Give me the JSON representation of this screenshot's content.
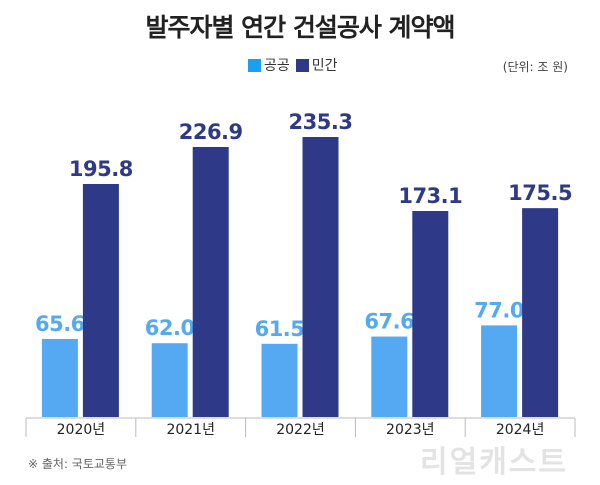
{
  "chart_data": {
    "type": "bar",
    "title": "발주자별 연간 건설공사 계약액",
    "unit": "(단위: 조 원)",
    "categories": [
      "2020년",
      "2021년",
      "2022년",
      "2023년",
      "2024년"
    ],
    "series": [
      {
        "name": "공공",
        "color": "#55a9f3",
        "values": [
          65.6,
          62.0,
          61.5,
          67.6,
          77.0
        ],
        "labels": [
          "65.6",
          "62.0",
          "61.5",
          "67.6",
          "77.0"
        ]
      },
      {
        "name": "민간",
        "color": "#2e3a87",
        "values": [
          195.8,
          226.9,
          235.3,
          173.1,
          175.5
        ],
        "labels": [
          "195.8",
          "226.9",
          "235.3",
          "173.1",
          "175.5"
        ]
      }
    ],
    "ylim": [
      0,
      240
    ],
    "legend": "top-center",
    "source": "※ 출처: 국토교통부",
    "watermark": "리얼캐스트"
  }
}
